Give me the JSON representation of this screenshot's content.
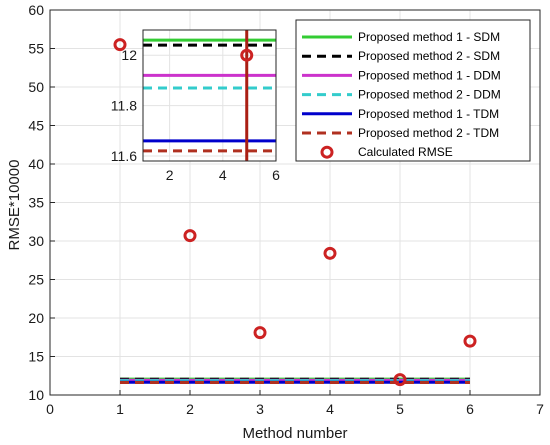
{
  "chart_data": {
    "type": "line",
    "xlabel": "Method number",
    "ylabel": "RMSE*10000",
    "xlim": [
      0,
      7
    ],
    "ylim": [
      10,
      60
    ],
    "xticks": [
      "0",
      "1",
      "2",
      "3",
      "4",
      "5",
      "6",
      "7"
    ],
    "yticks": [
      "10",
      "15",
      "20",
      "25",
      "30",
      "35",
      "40",
      "45",
      "50",
      "55",
      "60"
    ],
    "grid": true,
    "legend_position": "top-right",
    "series": [
      {
        "name": "Proposed method 1 - SDM",
        "type": "hline",
        "y": 12.06,
        "x": [
          1,
          6
        ],
        "color": "#33cc33",
        "dash": "solid"
      },
      {
        "name": "Proposed method 2 - SDM",
        "type": "hline",
        "y": 12.04,
        "x": [
          1,
          6
        ],
        "color": "#000000",
        "dash": "dashed"
      },
      {
        "name": "Proposed method 1 - DDM",
        "type": "hline",
        "y": 11.92,
        "x": [
          1,
          6
        ],
        "color": "#cc33cc",
        "dash": "solid"
      },
      {
        "name": "Proposed method 2 - DDM",
        "type": "hline",
        "y": 11.87,
        "x": [
          1,
          6
        ],
        "color": "#33cccc",
        "dash": "dashed"
      },
      {
        "name": "Proposed method 1 - TDM",
        "type": "hline",
        "y": 11.66,
        "x": [
          1,
          6
        ],
        "color": "#0000cc",
        "dash": "solid"
      },
      {
        "name": "Proposed method 2 - TDM",
        "type": "hline",
        "y": 11.62,
        "x": [
          1,
          6
        ],
        "color": "#b03020",
        "dash": "dashed"
      },
      {
        "name": "Calculated RMSE",
        "type": "scatter",
        "x": [
          1,
          2,
          3,
          4,
          5,
          6
        ],
        "y": [
          55.5,
          30.7,
          18.1,
          28.4,
          12.0,
          17.0
        ],
        "color": "#cc2222"
      }
    ],
    "inset": {
      "xlim": [
        1,
        6
      ],
      "ylim": [
        11.58,
        12.1
      ],
      "xticks": [
        "2",
        "4",
        "6"
      ],
      "yticks": [
        "11.6",
        "11.8",
        "12"
      ],
      "vline_x": 4.9,
      "point": {
        "x": 4.9,
        "y": 12.0
      }
    }
  }
}
